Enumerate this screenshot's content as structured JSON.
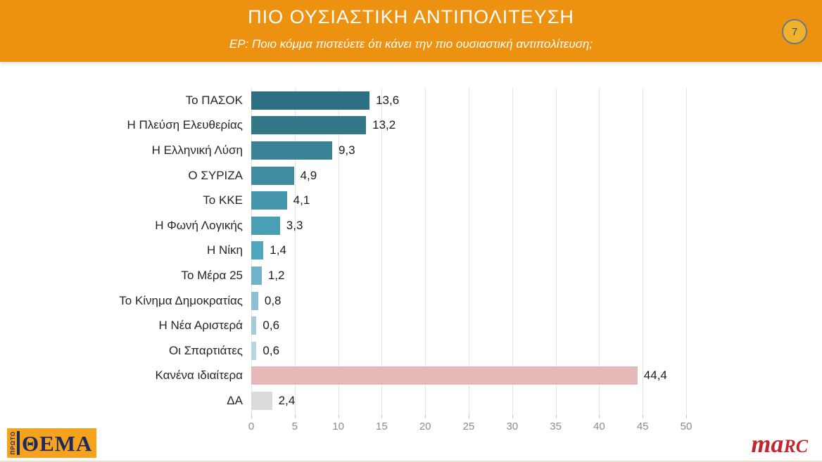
{
  "header": {
    "title": "ΠΙΟ ΟΥΣΙΑΣΤΙΚΗ ΑΝΤΙΠΟΛΙΤΕΥΣΗ",
    "subtitle": "ΕΡ: Ποιο κόμμα πιστεύετε ότι κάνει την πιο ουσιαστική αντιπολίτευση;",
    "page_number": "7",
    "background_color": "#EC9210"
  },
  "chart_data": {
    "type": "bar",
    "orientation": "horizontal",
    "title": "ΠΙΟ ΟΥΣΙΑΣΤΙΚΗ ΑΝΤΙΠΟΛΙΤΕΥΣΗ",
    "categories": [
      "Το ΠΑΣΟΚ",
      "Η Πλεύση Ελευθερίας",
      "Η Ελληνική Λύση",
      "Ο ΣΥΡΙΖΑ",
      "Το ΚΚΕ",
      "Η Φωνή Λογικής",
      "Η Νίκη",
      "Το Μέρα 25",
      "Το Κίνημα Δημοκρατίας",
      "Η Νέα Αριστερά",
      "Οι Σπαρτιάτες",
      "Κανένα ιδιαίτερα",
      "ΔΑ"
    ],
    "values": [
      13.6,
      13.2,
      9.3,
      4.9,
      4.1,
      3.3,
      1.4,
      1.2,
      0.8,
      0.6,
      0.6,
      44.4,
      2.4
    ],
    "value_labels": [
      "13,6",
      "13,2",
      "9,3",
      "4,9",
      "4,1",
      "3,3",
      "1,4",
      "1,2",
      "0,8",
      "0,6",
      "0,6",
      "44,4",
      "2,4"
    ],
    "bar_colors": [
      "#2D6F82",
      "#337889",
      "#3A8396",
      "#3F8CA1",
      "#4596AC",
      "#4A9FB5",
      "#4FA7BE",
      "#6FB2CA",
      "#8DC0D4",
      "#A3CBDC",
      "#B5D5E1",
      "#E6B8B7",
      "#DBDBDB"
    ],
    "xlim": [
      0,
      50
    ],
    "x_ticks": [
      0,
      5,
      10,
      15,
      20,
      25,
      30,
      35,
      40,
      45,
      50
    ],
    "grid": true,
    "legend": false
  },
  "footer": {
    "left_logo_vertical": "ΠΡΩΤΟ",
    "left_logo_text": "ΘΕΜΑ",
    "right_logo_part1": "ma",
    "right_logo_part2": "RC"
  }
}
